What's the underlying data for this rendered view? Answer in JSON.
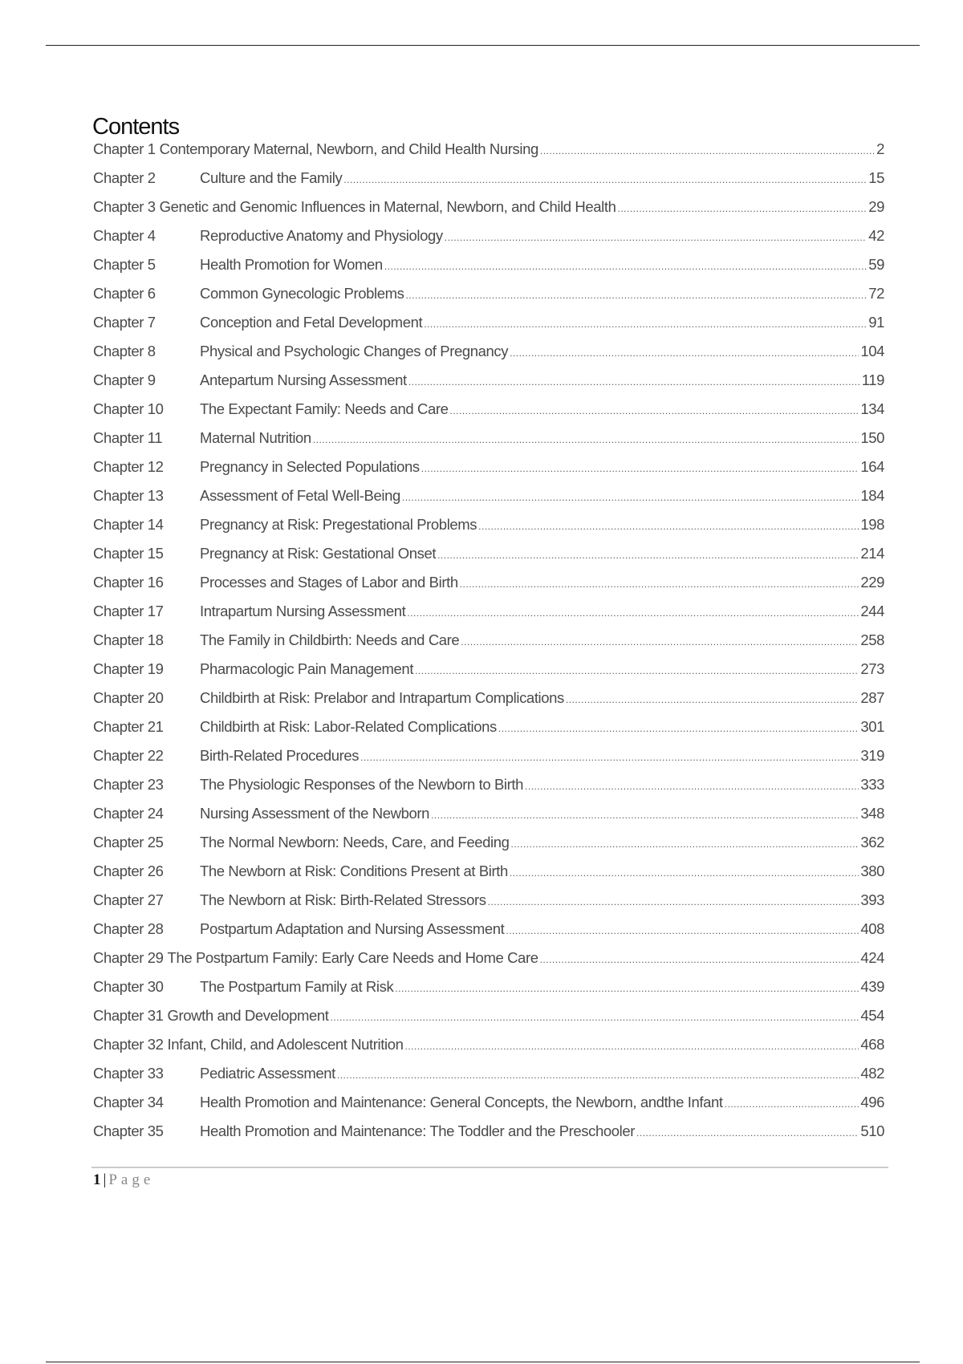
{
  "title": "Contents",
  "entries": [
    {
      "label": "Chapter 1",
      "title": "Contemporary Maternal, Newborn, and Child Health Nursing",
      "page": "2"
    },
    {
      "label": "Chapter 2",
      "title": "Culture and the Family",
      "page": "15"
    },
    {
      "label": "Chapter 3",
      "title": "Genetic and Genomic Influences in Maternal, Newborn, and Child Health",
      "page": "29"
    },
    {
      "label": "Chapter 4",
      "title": "Reproductive Anatomy and Physiology",
      "page": "42"
    },
    {
      "label": "Chapter 5",
      "title": "Health Promotion for Women",
      "page": "59"
    },
    {
      "label": "Chapter 6",
      "title": "Common Gynecologic Problems",
      "page": "72"
    },
    {
      "label": "Chapter 7",
      "title": "Conception and Fetal Development",
      "page": "91"
    },
    {
      "label": "Chapter 8",
      "title": "Physical and Psychologic Changes of Pregnancy",
      "page": "104"
    },
    {
      "label": "Chapter 9",
      "title": "Antepartum Nursing Assessment",
      "page": "119"
    },
    {
      "label": "Chapter 10",
      "title": "The Expectant Family: Needs and Care",
      "page": "134"
    },
    {
      "label": "Chapter 11",
      "title": "Maternal Nutrition",
      "page": "150"
    },
    {
      "label": "Chapter 12",
      "title": "Pregnancy in Selected Populations",
      "page": "164"
    },
    {
      "label": "Chapter 13",
      "title": "Assessment of Fetal Well-Being",
      "page": "184"
    },
    {
      "label": "Chapter 14",
      "title": "Pregnancy at Risk: Pregestational Problems",
      "page": "198"
    },
    {
      "label": "Chapter 15",
      "title": "Pregnancy at Risk: Gestational Onset",
      "page": "214"
    },
    {
      "label": "Chapter 16",
      "title": "Processes and Stages of Labor and Birth",
      "page": "229"
    },
    {
      "label": "Chapter 17",
      "title": "Intrapartum Nursing Assessment",
      "page": "244"
    },
    {
      "label": "Chapter 18",
      "title": "The Family in Childbirth: Needs and Care",
      "page": "258"
    },
    {
      "label": "Chapter 19",
      "title": "Pharmacologic Pain Management",
      "page": "273"
    },
    {
      "label": "Chapter 20",
      "title": "Childbirth at Risk: Prelabor and Intrapartum Complications",
      "page": "287"
    },
    {
      "label": "Chapter 21",
      "title": "Childbirth at Risk: Labor-Related Complications",
      "page": "301"
    },
    {
      "label": "Chapter 22",
      "title": "Birth-Related Procedures",
      "page": "319"
    },
    {
      "label": "Chapter 23",
      "title": "The Physiologic Responses of the Newborn to Birth",
      "page": "333"
    },
    {
      "label": "Chapter 24",
      "title": "Nursing Assessment of the Newborn",
      "page": "348"
    },
    {
      "label": "Chapter 25",
      "title": "The Normal Newborn: Needs, Care, and Feeding",
      "page": "362"
    },
    {
      "label": "Chapter 26",
      "title": "The Newborn at Risk: Conditions Present at Birth",
      "page": "380"
    },
    {
      "label": "Chapter 27",
      "title": "The Newborn at Risk: Birth-Related Stressors",
      "page": "393"
    },
    {
      "label": "Chapter 28",
      "title": "Postpartum Adaptation and Nursing Assessment",
      "page": "408"
    },
    {
      "label": "Chapter 29",
      "title": "The Postpartum Family: Early Care Needs and Home Care",
      "page": "424"
    },
    {
      "label": "Chapter 30",
      "title": "The Postpartum Family at Risk",
      "page": "439"
    },
    {
      "label": "Chapter 31",
      "title": "Growth and Development",
      "page": "454"
    },
    {
      "label": "Chapter 32",
      "title": "Infant, Child, and Adolescent Nutrition",
      "page": "468"
    },
    {
      "label": "Chapter 33",
      "title": "Pediatric Assessment",
      "page": "482"
    },
    {
      "label": "Chapter 34",
      "title": "Health Promotion and Maintenance: General Concepts, the Newborn, andthe Infant",
      "page": "496"
    },
    {
      "label": "Chapter 35",
      "title": "Health Promotion and Maintenance: The Toddler and the Preschooler",
      "page": "510"
    }
  ],
  "footer": {
    "page_number": "1",
    "separator": "|",
    "page_word": "Page"
  }
}
